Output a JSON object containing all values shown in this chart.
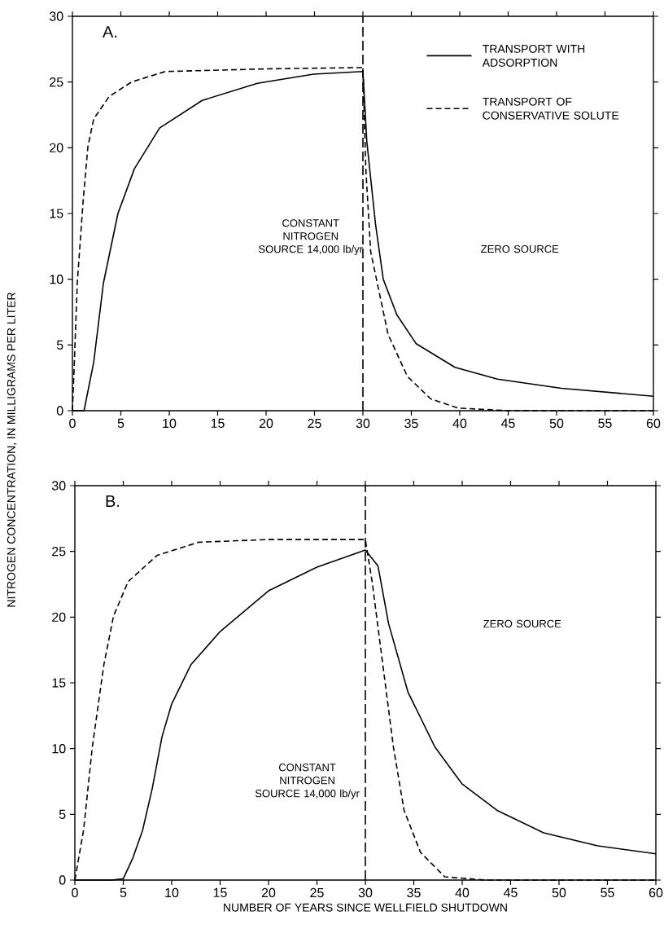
{
  "chart_data": [
    {
      "type": "line",
      "title": "A.",
      "ylabel": "NITROGEN CONCENTRATION, IN MILLIGRAMS PER LITER",
      "xlim": [
        0,
        60
      ],
      "ylim": [
        0,
        30
      ],
      "xticks": [
        0,
        5,
        10,
        15,
        20,
        25,
        30,
        35,
        40,
        45,
        50,
        55,
        60
      ],
      "yticks": [
        0,
        5,
        10,
        15,
        20,
        25,
        30
      ],
      "legend": "top right",
      "grid": false,
      "marker": "none",
      "series": [
        {
          "name": "TRANSPORT WITH ADSORPTION",
          "color": "#000000",
          "line_style": "solid",
          "x": [
            0,
            1.2,
            2.2,
            3.2,
            4.7,
            6.4,
            9.0,
            13.4,
            19.1,
            24.9,
            30,
            30.4,
            31.3,
            32.1,
            33.5,
            35.5,
            39.5,
            43.9,
            50.5,
            60
          ],
          "values": [
            0,
            0,
            3.7,
            9.7,
            15.0,
            18.4,
            21.5,
            23.6,
            24.9,
            25.6,
            25.8,
            20.5,
            14.2,
            10.0,
            7.3,
            5.1,
            3.3,
            2.4,
            1.7,
            1.1
          ]
        },
        {
          "name": "TRANSPORT OF CONSERVATIVE SOLUTE",
          "color": "#000000",
          "line_style": "dashed",
          "x": [
            0,
            0.2,
            0.5,
            1.1,
            1.6,
            2.2,
            3.8,
            6.1,
            9.6,
            20,
            30,
            30.3,
            30.8,
            32.6,
            34.6,
            37.0,
            39.8,
            45,
            60
          ],
          "values": [
            0,
            3.7,
            9.7,
            15.9,
            20.1,
            22.2,
            23.9,
            25.0,
            25.8,
            26.0,
            26.1,
            18.4,
            12.1,
            5.8,
            2.6,
            0.9,
            0.2,
            0,
            0
          ]
        }
      ],
      "ref_lines": [
        {
          "axis": "x",
          "value": 30,
          "line_style": "dashed"
        }
      ],
      "annotations": [
        "CONSTANT NITROGEN SOURCE 14,000 lb/yr",
        "ZERO SOURCE"
      ]
    },
    {
      "type": "line",
      "title": "B.",
      "xlabel": "NUMBER OF YEARS SINCE WELLFIELD SHUTDOWN",
      "xlim": [
        0,
        60
      ],
      "ylim": [
        0,
        30
      ],
      "xticks": [
        0,
        5,
        10,
        15,
        20,
        25,
        30,
        35,
        40,
        45,
        50,
        55,
        60
      ],
      "yticks": [
        0,
        5,
        10,
        15,
        20,
        25,
        30
      ],
      "legend": false,
      "grid": false,
      "marker": "none",
      "series": [
        {
          "color": "#000000",
          "line_style": "solid",
          "x": [
            0,
            3.8,
            5,
            6,
            7,
            8,
            9,
            10,
            12,
            15,
            20,
            25,
            30,
            31.3,
            32.4,
            34.4,
            37.2,
            40,
            43.6,
            48.4,
            54,
            60
          ],
          "values": [
            0,
            0,
            0.1,
            1.7,
            3.8,
            7.0,
            10.9,
            13.4,
            16.4,
            18.9,
            22.0,
            23.8,
            25.1,
            23.9,
            19.5,
            14.3,
            10.1,
            7.3,
            5.3,
            3.6,
            2.6,
            2.0
          ]
        },
        {
          "color": "#000000",
          "line_style": "dashed",
          "x": [
            0,
            0.9,
            1.8,
            3.0,
            4.0,
            5.5,
            8.5,
            12.8,
            20,
            30,
            30.7,
            31.8,
            32.9,
            34.0,
            35.7,
            38.2,
            42.4,
            60
          ],
          "values": [
            0,
            3.8,
            10.1,
            16.4,
            20.1,
            22.7,
            24.7,
            25.7,
            25.9,
            25.9,
            22.7,
            16.4,
            10.1,
            5.3,
            2.1,
            0.25,
            0,
            0
          ]
        }
      ],
      "ref_lines": [
        {
          "axis": "x",
          "value": 30,
          "line_style": "dashed"
        }
      ],
      "annotations": [
        "CONSTANT NITROGEN SOURCE 14,000 lb/yr",
        "ZERO SOURCE"
      ]
    }
  ]
}
